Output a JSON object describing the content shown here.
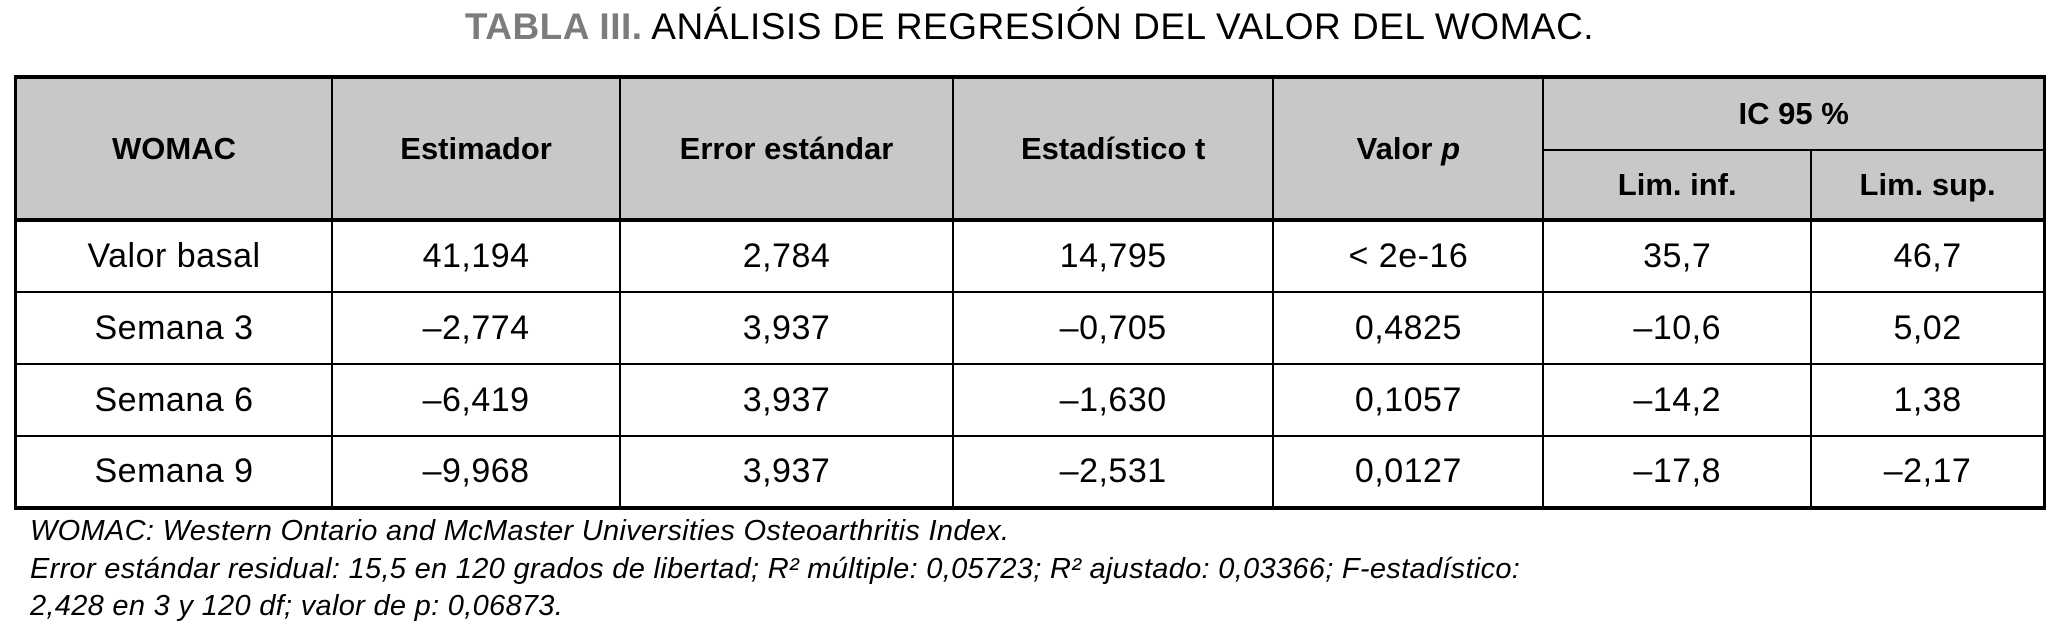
{
  "title": {
    "label": "TABLA III.",
    "text": "ANÁLISIS DE REGRESIÓN DEL VALOR DEL WOMAC."
  },
  "table": {
    "headers": {
      "womac": "WOMAC",
      "estimador": "Estimador",
      "error_estandar": "Error estándar",
      "estadistico_t": "Estadístico t",
      "valor_p_text": "Valor",
      "valor_p_italic": "p",
      "ic": "IC 95 %",
      "lim_inf": "Lim. inf.",
      "lim_sup": "Lim. sup."
    },
    "rows": [
      [
        "Valor basal",
        "41,194",
        "2,784",
        "14,795",
        "< 2e-16",
        "35,7",
        "46,7"
      ],
      [
        "Semana 3",
        "–2,774",
        "3,937",
        "–0,705",
        "0,4825",
        "–10,6",
        "5,02"
      ],
      [
        "Semana 6",
        "–6,419",
        "3,937",
        "–1,630",
        "0,1057",
        "–14,2",
        "1,38"
      ],
      [
        "Semana 9",
        "–9,968",
        "3,937",
        "–2,531",
        "0,0127",
        "–17,8",
        "–2,17"
      ]
    ]
  },
  "notes": {
    "lines": [
      "WOMAC: Western Ontario and McMaster Universities Osteoarthritis Index.",
      "Error estándar residual: 15,5 en 120 grados de libertad; R² múltiple: 0,05723; R² ajustado: 0,03366; F-estadístico:",
      "2,428 en 3 y 120 df; valor de p: 0,06873."
    ]
  },
  "colors": {
    "header_bg": "#c8c8c8",
    "border": "#000000",
    "title_accent": "#7c7c7c",
    "text": "#000000"
  }
}
